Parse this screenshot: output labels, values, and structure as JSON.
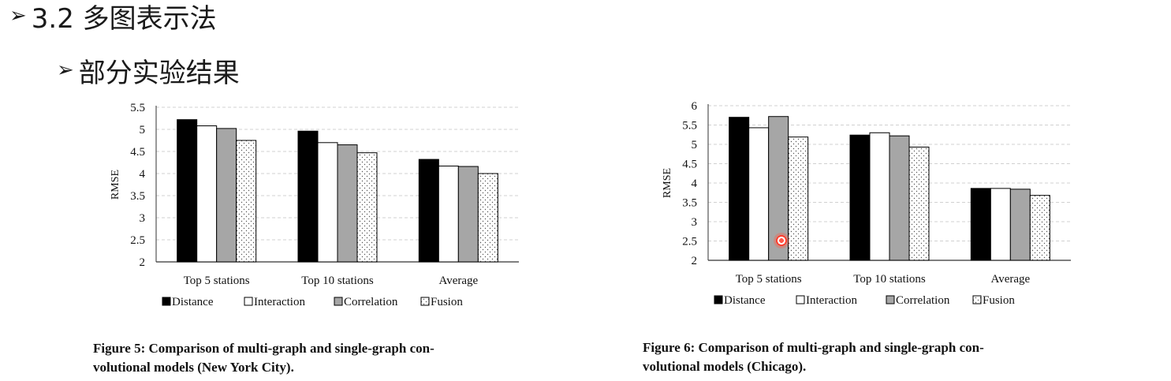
{
  "slide": {
    "heading1": "3.2 多图表示法",
    "heading2": "部分实验结果",
    "bullet_glyph": "➢"
  },
  "chart_data": [
    {
      "id": "ny",
      "type": "bar",
      "title": "",
      "xlabel": "",
      "ylabel": "RMSE",
      "ylim": [
        2,
        5.5
      ],
      "yticks": [
        2,
        2.5,
        3,
        3.5,
        4,
        4.5,
        5,
        5.5
      ],
      "grid": "horizontal-dashed",
      "legend_position": "bottom",
      "categories": [
        "Top 5 stations",
        "Top 10 stations",
        "Average"
      ],
      "series": [
        {
          "name": "Distance",
          "style": "black",
          "values": [
            5.22,
            4.96,
            4.32
          ]
        },
        {
          "name": "Interaction",
          "style": "white",
          "values": [
            5.08,
            4.7,
            4.17
          ]
        },
        {
          "name": "Correlation",
          "style": "gray",
          "values": [
            5.02,
            4.65,
            4.16
          ]
        },
        {
          "name": "Fusion",
          "style": "dotted",
          "values": [
            4.75,
            4.47,
            4.0
          ]
        }
      ],
      "caption_line1": "Figure 5: Comparison of multi-graph and single-graph con-",
      "caption_line2": "volutional models (New York City)."
    },
    {
      "id": "chi",
      "type": "bar",
      "title": "",
      "xlabel": "",
      "ylabel": "RMSE",
      "ylim": [
        2,
        6
      ],
      "yticks": [
        2,
        2.5,
        3,
        3.5,
        4,
        4.5,
        5,
        5.5,
        6
      ],
      "grid": "horizontal-dashed",
      "legend_position": "bottom",
      "categories": [
        "Top 5 stations",
        "Top 10 stations",
        "Average"
      ],
      "series": [
        {
          "name": "Distance",
          "style": "black",
          "values": [
            5.7,
            5.24,
            3.86
          ]
        },
        {
          "name": "Interaction",
          "style": "white",
          "values": [
            5.43,
            5.3,
            3.86
          ]
        },
        {
          "name": "Correlation",
          "style": "gray",
          "values": [
            5.72,
            5.22,
            3.84
          ]
        },
        {
          "name": "Fusion",
          "style": "dotted",
          "values": [
            5.19,
            4.93,
            3.68
          ]
        }
      ],
      "caption_line1": "Figure 6: Comparison of multi-graph and single-graph con-",
      "caption_line2": "volutional models (Chicago)."
    }
  ],
  "colors": {
    "black_bar": "#000000",
    "gray_bar": "#a6a6a6",
    "white_bar": "#ffffff",
    "axis": "#333333",
    "grid": "#d0d0d0",
    "cursor": "#ff4030"
  }
}
